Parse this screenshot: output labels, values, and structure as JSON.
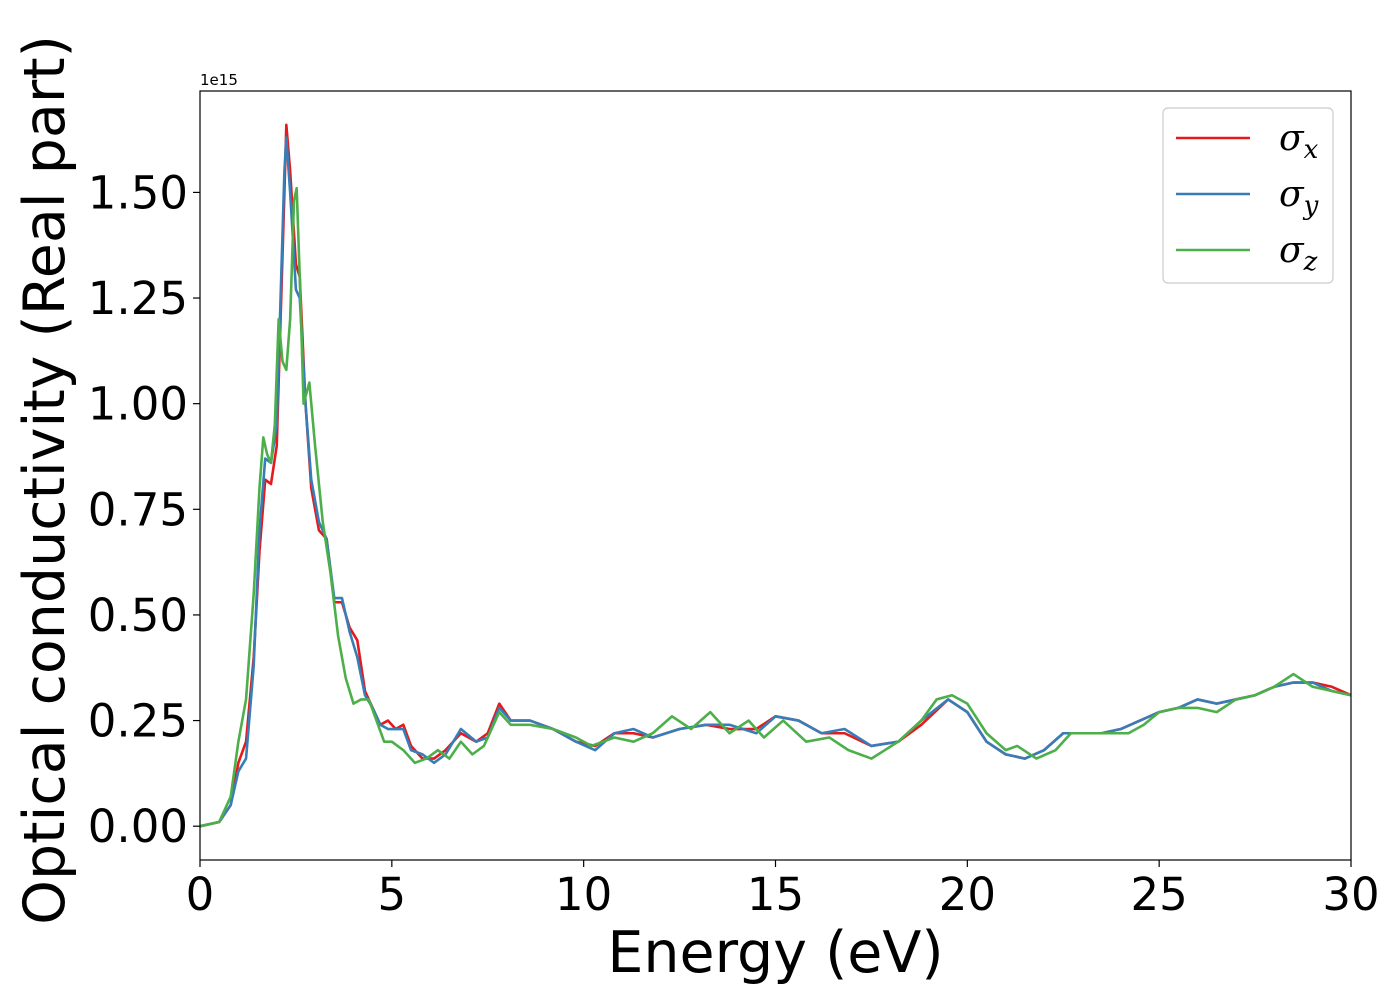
{
  "chart_data": {
    "type": "line",
    "xlabel": "Energy (eV)",
    "ylabel": "Optical conductivity (Real part)",
    "offset_text": "1e15",
    "xlim": [
      0,
      30
    ],
    "ylim": [
      -0.08,
      1.74
    ],
    "y_scale_factor": 1000000000000000.0,
    "x_ticks": [
      0,
      5,
      10,
      15,
      20,
      25,
      30
    ],
    "x_tick_labels": [
      "0",
      "5",
      "10",
      "15",
      "20",
      "25",
      "30"
    ],
    "y_ticks": [
      0,
      0.25,
      0.5,
      0.75,
      1.0,
      1.25,
      1.5
    ],
    "y_tick_labels": [
      "0.00",
      "0.25",
      "0.50",
      "0.75",
      "1.00",
      "1.25",
      "1.50"
    ],
    "grid": false,
    "legend_position": "top-right",
    "series": [
      {
        "name": "σx",
        "legend_base": "σ",
        "legend_sub": "x",
        "color": "#e41a1c",
        "points": [
          [
            0,
            0
          ],
          [
            0.5,
            0.01
          ],
          [
            0.8,
            0.05
          ],
          [
            1.0,
            0.15
          ],
          [
            1.2,
            0.2
          ],
          [
            1.4,
            0.4
          ],
          [
            1.55,
            0.65
          ],
          [
            1.7,
            0.82
          ],
          [
            1.85,
            0.81
          ],
          [
            2.0,
            0.9
          ],
          [
            2.1,
            1.2
          ],
          [
            2.2,
            1.5
          ],
          [
            2.25,
            1.66
          ],
          [
            2.35,
            1.55
          ],
          [
            2.5,
            1.33
          ],
          [
            2.6,
            1.3
          ],
          [
            2.75,
            1.0
          ],
          [
            2.9,
            0.8
          ],
          [
            3.1,
            0.7
          ],
          [
            3.3,
            0.68
          ],
          [
            3.5,
            0.53
          ],
          [
            3.7,
            0.53
          ],
          [
            3.9,
            0.47
          ],
          [
            4.1,
            0.44
          ],
          [
            4.3,
            0.32
          ],
          [
            4.5,
            0.28
          ],
          [
            4.7,
            0.24
          ],
          [
            4.9,
            0.25
          ],
          [
            5.1,
            0.23
          ],
          [
            5.3,
            0.24
          ],
          [
            5.5,
            0.19
          ],
          [
            5.8,
            0.16
          ],
          [
            6.1,
            0.16
          ],
          [
            6.4,
            0.18
          ],
          [
            6.8,
            0.22
          ],
          [
            7.2,
            0.2
          ],
          [
            7.5,
            0.22
          ],
          [
            7.8,
            0.29
          ],
          [
            8.1,
            0.25
          ],
          [
            8.6,
            0.25
          ],
          [
            9.2,
            0.23
          ],
          [
            9.8,
            0.2
          ],
          [
            10.3,
            0.19
          ],
          [
            10.8,
            0.22
          ],
          [
            11.3,
            0.22
          ],
          [
            11.8,
            0.21
          ],
          [
            12.5,
            0.23
          ],
          [
            13.2,
            0.24
          ],
          [
            13.8,
            0.23
          ],
          [
            14.5,
            0.23
          ],
          [
            15.0,
            0.26
          ],
          [
            15.6,
            0.25
          ],
          [
            16.2,
            0.22
          ],
          [
            16.8,
            0.22
          ],
          [
            17.5,
            0.19
          ],
          [
            18.2,
            0.2
          ],
          [
            18.8,
            0.24
          ],
          [
            19.5,
            0.3
          ],
          [
            20.0,
            0.27
          ],
          [
            20.5,
            0.2
          ],
          [
            21.0,
            0.17
          ],
          [
            21.5,
            0.16
          ],
          [
            22.0,
            0.18
          ],
          [
            22.5,
            0.22
          ],
          [
            23.0,
            0.22
          ],
          [
            23.5,
            0.22
          ],
          [
            24.0,
            0.23
          ],
          [
            24.5,
            0.25
          ],
          [
            25.0,
            0.27
          ],
          [
            25.5,
            0.28
          ],
          [
            26.0,
            0.3
          ],
          [
            26.5,
            0.29
          ],
          [
            27.0,
            0.3
          ],
          [
            27.5,
            0.31
          ],
          [
            28.0,
            0.33
          ],
          [
            28.5,
            0.34
          ],
          [
            29.0,
            0.34
          ],
          [
            29.5,
            0.33
          ],
          [
            30.0,
            0.31
          ]
        ]
      },
      {
        "name": "σy",
        "legend_base": "σ",
        "legend_sub": "y",
        "color": "#377eb8",
        "points": [
          [
            0,
            0
          ],
          [
            0.5,
            0.01
          ],
          [
            0.8,
            0.05
          ],
          [
            1.0,
            0.13
          ],
          [
            1.2,
            0.16
          ],
          [
            1.4,
            0.38
          ],
          [
            1.55,
            0.7
          ],
          [
            1.7,
            0.87
          ],
          [
            1.85,
            0.86
          ],
          [
            2.0,
            0.95
          ],
          [
            2.1,
            1.25
          ],
          [
            2.2,
            1.55
          ],
          [
            2.25,
            1.63
          ],
          [
            2.35,
            1.5
          ],
          [
            2.5,
            1.27
          ],
          [
            2.6,
            1.25
          ],
          [
            2.75,
            1.0
          ],
          [
            2.9,
            0.82
          ],
          [
            3.1,
            0.72
          ],
          [
            3.3,
            0.68
          ],
          [
            3.5,
            0.54
          ],
          [
            3.7,
            0.54
          ],
          [
            3.9,
            0.46
          ],
          [
            4.1,
            0.4
          ],
          [
            4.3,
            0.31
          ],
          [
            4.5,
            0.28
          ],
          [
            4.7,
            0.24
          ],
          [
            4.9,
            0.23
          ],
          [
            5.1,
            0.23
          ],
          [
            5.3,
            0.23
          ],
          [
            5.5,
            0.18
          ],
          [
            5.8,
            0.17
          ],
          [
            6.1,
            0.15
          ],
          [
            6.4,
            0.17
          ],
          [
            6.8,
            0.23
          ],
          [
            7.2,
            0.2
          ],
          [
            7.5,
            0.21
          ],
          [
            7.8,
            0.28
          ],
          [
            8.1,
            0.25
          ],
          [
            8.6,
            0.25
          ],
          [
            9.2,
            0.23
          ],
          [
            9.8,
            0.2
          ],
          [
            10.3,
            0.18
          ],
          [
            10.8,
            0.22
          ],
          [
            11.3,
            0.23
          ],
          [
            11.8,
            0.21
          ],
          [
            12.5,
            0.23
          ],
          [
            13.2,
            0.24
          ],
          [
            13.8,
            0.24
          ],
          [
            14.5,
            0.22
          ],
          [
            15.0,
            0.26
          ],
          [
            15.6,
            0.25
          ],
          [
            16.2,
            0.22
          ],
          [
            16.8,
            0.23
          ],
          [
            17.5,
            0.19
          ],
          [
            18.2,
            0.2
          ],
          [
            18.8,
            0.25
          ],
          [
            19.5,
            0.3
          ],
          [
            20.0,
            0.27
          ],
          [
            20.5,
            0.2
          ],
          [
            21.0,
            0.17
          ],
          [
            21.5,
            0.16
          ],
          [
            22.0,
            0.18
          ],
          [
            22.5,
            0.22
          ],
          [
            23.0,
            0.22
          ],
          [
            23.5,
            0.22
          ],
          [
            24.0,
            0.23
          ],
          [
            24.5,
            0.25
          ],
          [
            25.0,
            0.27
          ],
          [
            25.5,
            0.28
          ],
          [
            26.0,
            0.3
          ],
          [
            26.5,
            0.29
          ],
          [
            27.0,
            0.3
          ],
          [
            27.5,
            0.31
          ],
          [
            28.0,
            0.33
          ],
          [
            28.5,
            0.34
          ],
          [
            29.0,
            0.34
          ],
          [
            29.5,
            0.32
          ],
          [
            30.0,
            0.31
          ]
        ]
      },
      {
        "name": "σz",
        "legend_base": "σ",
        "legend_sub": "z",
        "color": "#4daf4a",
        "points": [
          [
            0,
            0
          ],
          [
            0.5,
            0.01
          ],
          [
            0.8,
            0.07
          ],
          [
            1.0,
            0.2
          ],
          [
            1.2,
            0.3
          ],
          [
            1.4,
            0.55
          ],
          [
            1.55,
            0.8
          ],
          [
            1.65,
            0.92
          ],
          [
            1.75,
            0.88
          ],
          [
            1.85,
            0.86
          ],
          [
            1.95,
            0.95
          ],
          [
            2.05,
            1.2
          ],
          [
            2.15,
            1.1
          ],
          [
            2.25,
            1.08
          ],
          [
            2.35,
            1.2
          ],
          [
            2.45,
            1.48
          ],
          [
            2.52,
            1.51
          ],
          [
            2.6,
            1.3
          ],
          [
            2.7,
            1.0
          ],
          [
            2.85,
            1.05
          ],
          [
            3.0,
            0.9
          ],
          [
            3.2,
            0.72
          ],
          [
            3.4,
            0.6
          ],
          [
            3.6,
            0.45
          ],
          [
            3.8,
            0.35
          ],
          [
            4.0,
            0.29
          ],
          [
            4.2,
            0.3
          ],
          [
            4.4,
            0.3
          ],
          [
            4.6,
            0.25
          ],
          [
            4.8,
            0.2
          ],
          [
            5.0,
            0.2
          ],
          [
            5.3,
            0.18
          ],
          [
            5.6,
            0.15
          ],
          [
            5.9,
            0.16
          ],
          [
            6.2,
            0.18
          ],
          [
            6.5,
            0.16
          ],
          [
            6.8,
            0.2
          ],
          [
            7.1,
            0.17
          ],
          [
            7.4,
            0.19
          ],
          [
            7.8,
            0.27
          ],
          [
            8.1,
            0.24
          ],
          [
            8.6,
            0.24
          ],
          [
            9.2,
            0.23
          ],
          [
            9.8,
            0.21
          ],
          [
            10.2,
            0.19
          ],
          [
            10.8,
            0.21
          ],
          [
            11.3,
            0.2
          ],
          [
            11.8,
            0.22
          ],
          [
            12.3,
            0.26
          ],
          [
            12.8,
            0.23
          ],
          [
            13.3,
            0.27
          ],
          [
            13.8,
            0.22
          ],
          [
            14.3,
            0.25
          ],
          [
            14.7,
            0.21
          ],
          [
            15.2,
            0.25
          ],
          [
            15.8,
            0.2
          ],
          [
            16.4,
            0.21
          ],
          [
            16.9,
            0.18
          ],
          [
            17.5,
            0.16
          ],
          [
            18.2,
            0.2
          ],
          [
            18.8,
            0.25
          ],
          [
            19.2,
            0.3
          ],
          [
            19.6,
            0.31
          ],
          [
            20.0,
            0.29
          ],
          [
            20.5,
            0.22
          ],
          [
            21.0,
            0.18
          ],
          [
            21.3,
            0.19
          ],
          [
            21.8,
            0.16
          ],
          [
            22.3,
            0.18
          ],
          [
            22.7,
            0.22
          ],
          [
            23.2,
            0.22
          ],
          [
            23.7,
            0.22
          ],
          [
            24.2,
            0.22
          ],
          [
            24.6,
            0.24
          ],
          [
            25.0,
            0.27
          ],
          [
            25.5,
            0.28
          ],
          [
            26.0,
            0.28
          ],
          [
            26.5,
            0.27
          ],
          [
            27.0,
            0.3
          ],
          [
            27.5,
            0.31
          ],
          [
            28.0,
            0.33
          ],
          [
            28.5,
            0.36
          ],
          [
            29.0,
            0.33
          ],
          [
            29.5,
            0.32
          ],
          [
            30.0,
            0.31
          ]
        ]
      }
    ]
  }
}
